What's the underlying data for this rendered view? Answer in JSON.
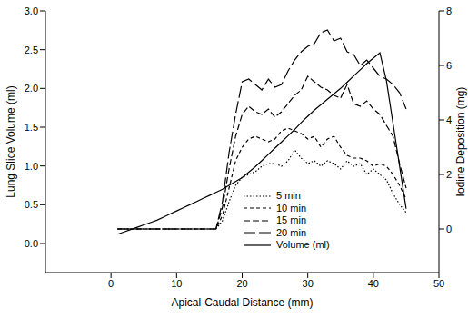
{
  "chart_data": {
    "type": "line",
    "x_label": "Apical-Caudal Distance (mm)",
    "y_label": "Lung Slice Volume (ml)",
    "y2_label": "Iodine Deposition (mg)",
    "x": [
      1,
      2,
      3,
      4,
      5,
      6,
      7,
      8,
      9,
      10,
      11,
      12,
      13,
      14,
      15,
      16,
      17,
      18,
      19,
      20,
      21,
      22,
      23,
      24,
      25,
      26,
      27,
      28,
      29,
      30,
      31,
      32,
      33,
      34,
      35,
      36,
      37,
      38,
      39,
      40,
      41,
      42,
      43,
      44,
      45
    ],
    "xlim": [
      -10,
      50
    ],
    "xticks": [
      0,
      10,
      20,
      30,
      40,
      50
    ],
    "ylim": [
      -0.375,
      3
    ],
    "yticks": [
      {
        "value": 0,
        "label": "0.0"
      },
      {
        "value": 0.5,
        "label": "0.5"
      },
      {
        "value": 1,
        "label": "1.0"
      },
      {
        "value": 1.5,
        "label": "1.5"
      },
      {
        "value": 2,
        "label": "2.0"
      },
      {
        "value": 2.5,
        "label": "2.5"
      },
      {
        "value": 3,
        "label": "3.0"
      }
    ],
    "y2lim": [
      -1.6,
      8
    ],
    "y2ticks": [
      0,
      2,
      4,
      6,
      8
    ],
    "grid": false,
    "legend": "lower center",
    "series": [
      {
        "name": "5 min",
        "color": "#000000",
        "line_style": "dotted",
        "axis": "y2",
        "values": [
          0,
          0,
          0,
          0,
          0,
          0,
          0,
          0,
          0,
          0,
          0,
          0,
          0,
          0,
          0,
          0,
          0.3,
          1.0,
          1.6,
          1.9,
          2.0,
          2.1,
          2.3,
          2.4,
          2.4,
          2.3,
          2.5,
          2.9,
          2.6,
          2.4,
          2.5,
          2.3,
          2.5,
          2.4,
          2.2,
          2.5,
          2.3,
          2.4,
          2.0,
          2.2,
          2.0,
          1.8,
          1.3,
          0.9,
          0.6
        ]
      },
      {
        "name": "10 min",
        "color": "#000000",
        "line_style": "short_dash",
        "axis": "y2",
        "values": [
          0,
          0,
          0,
          0,
          0,
          0,
          0,
          0,
          0,
          0,
          0,
          0,
          0,
          0,
          0,
          0,
          0.5,
          1.5,
          2.5,
          3.0,
          3.3,
          3.4,
          3.3,
          3.2,
          3.3,
          3.6,
          3.7,
          3.6,
          3.5,
          3.3,
          3.4,
          3.0,
          3.3,
          3.4,
          3.0,
          2.7,
          2.6,
          2.6,
          2.5,
          2.3,
          2.4,
          2.3,
          2.0,
          1.6,
          1.1
        ]
      },
      {
        "name": "15 min",
        "color": "#000000",
        "line_style": "dashed",
        "axis": "y2",
        "values": [
          0,
          0,
          0,
          0,
          0,
          0,
          0,
          0,
          0,
          0,
          0,
          0,
          0,
          0,
          0,
          0,
          0.8,
          2.2,
          3.4,
          4.2,
          4.5,
          4.3,
          4.2,
          4.4,
          4.1,
          4.3,
          4.6,
          4.9,
          5.1,
          5.6,
          5.4,
          5.2,
          5.1,
          4.9,
          4.8,
          5.3,
          4.6,
          4.5,
          4.7,
          4.4,
          4.2,
          3.8,
          3.4,
          2.4,
          1.5
        ]
      },
      {
        "name": "20 min",
        "color": "#000000",
        "line_style": "long_dash",
        "axis": "y2",
        "values": [
          0,
          0,
          0,
          0,
          0,
          0,
          0,
          0,
          0,
          0,
          0,
          0,
          0,
          0,
          0,
          0,
          1.0,
          2.8,
          4.2,
          5.4,
          5.5,
          5.3,
          5.1,
          5.5,
          5.2,
          5.3,
          5.8,
          6.2,
          6.5,
          6.7,
          6.8,
          7.2,
          7.3,
          6.9,
          7.0,
          6.5,
          6.4,
          6.0,
          6.2,
          5.9,
          5.6,
          5.5,
          5.3,
          5.0,
          4.4
        ]
      },
      {
        "name": "Volume (ml)",
        "color": "#000000",
        "line_style": "solid",
        "axis": "y",
        "values": [
          0.12,
          0.15,
          0.18,
          0.21,
          0.24,
          0.27,
          0.3,
          0.34,
          0.38,
          0.42,
          0.46,
          0.5,
          0.54,
          0.58,
          0.62,
          0.66,
          0.7,
          0.75,
          0.8,
          0.85,
          0.92,
          0.99,
          1.07,
          1.15,
          1.23,
          1.31,
          1.39,
          1.47,
          1.56,
          1.64,
          1.72,
          1.79,
          1.86,
          1.93,
          2.0,
          2.08,
          2.16,
          2.24,
          2.32,
          2.39,
          2.46,
          2.1,
          1.55,
          1.0,
          0.45
        ]
      }
    ]
  }
}
